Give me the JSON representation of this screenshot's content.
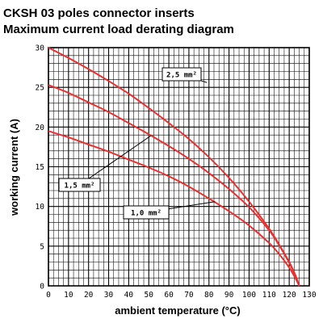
{
  "chart_data": {
    "type": "line",
    "title": "CKSH 03 poles connector inserts",
    "subtitle": "Maximum current load derating diagram",
    "xlabel": "ambient temperature (°C)",
    "ylabel": "working current (A)",
    "xlim": [
      0,
      130
    ],
    "ylim": [
      0,
      30
    ],
    "x_ticks": [
      0,
      10,
      20,
      30,
      40,
      50,
      60,
      70,
      80,
      90,
      100,
      110,
      120,
      130
    ],
    "y_ticks": [
      0,
      5,
      10,
      15,
      20,
      25,
      30
    ],
    "minor_grid_x_step": 2.5,
    "minor_grid_y_step": 1,
    "grid": true,
    "series_color": "#e8302e",
    "series": [
      {
        "name": "2,5 mm²",
        "x": [
          0,
          10,
          20,
          30,
          40,
          50,
          60,
          70,
          80,
          90,
          100,
          110,
          115,
          120,
          123,
          125
        ],
        "values": [
          30,
          28.7,
          27.3,
          25.8,
          24.2,
          22.4,
          20.5,
          18.5,
          16.2,
          13.6,
          10.6,
          7.2,
          5.2,
          3.0,
          1.4,
          0
        ]
      },
      {
        "name": "1,5 mm²",
        "x": [
          0,
          10,
          20,
          30,
          40,
          50,
          60,
          70,
          80,
          90,
          100,
          110,
          115,
          120,
          123,
          125
        ],
        "values": [
          25.3,
          24.3,
          23.1,
          21.9,
          20.5,
          19.1,
          17.6,
          16.0,
          14.2,
          12.2,
          9.9,
          7.0,
          5.1,
          2.9,
          1.3,
          0
        ]
      },
      {
        "name": "1,0 mm²",
        "x": [
          0,
          10,
          20,
          30,
          40,
          50,
          60,
          70,
          80,
          90,
          100,
          110,
          115,
          120,
          123,
          125
        ],
        "values": [
          19.5,
          18.7,
          17.8,
          16.9,
          15.9,
          14.9,
          13.8,
          12.5,
          11.0,
          9.4,
          7.6,
          5.4,
          4.0,
          2.3,
          1.0,
          0
        ]
      }
    ],
    "annotations": [
      {
        "text": "2,5 mm²",
        "series": "2,5 mm²"
      },
      {
        "text": "1,5 mm²",
        "series": "1,5 mm²"
      },
      {
        "text": "1,0 mm²",
        "series": "1,0 mm²"
      }
    ]
  }
}
